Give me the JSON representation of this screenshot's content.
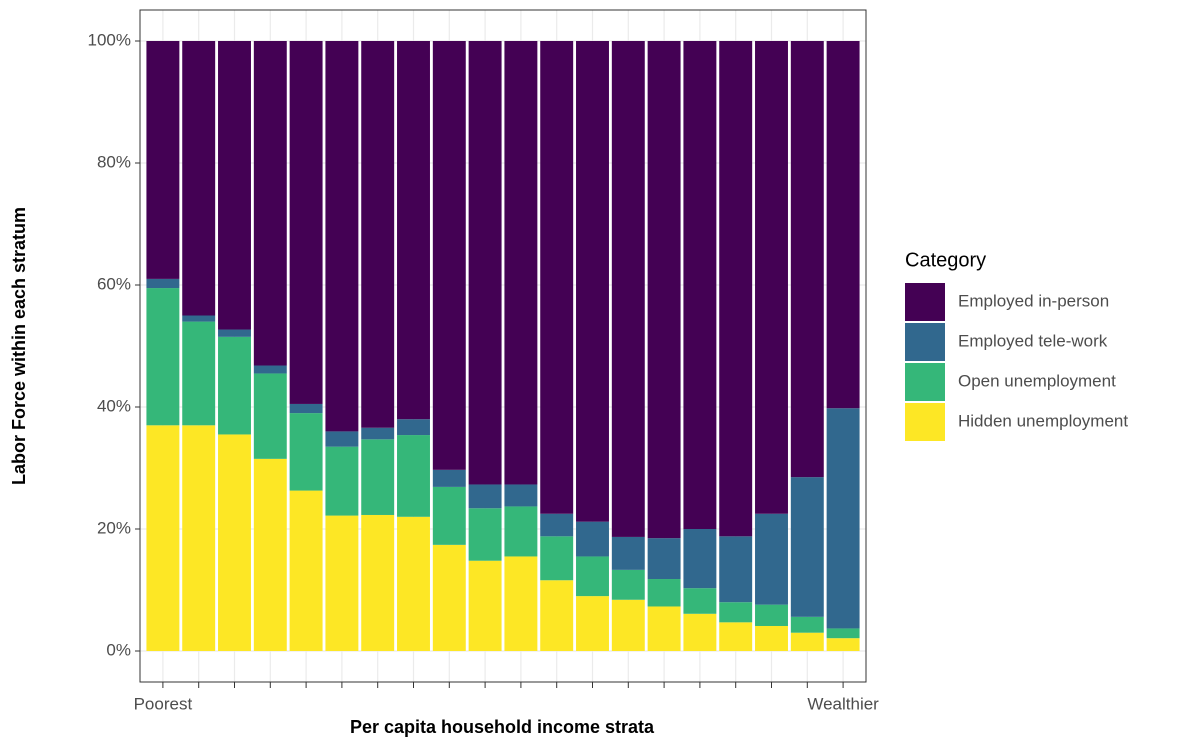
{
  "chart_data": {
    "type": "stacked_bar",
    "x_label": "Per capita household income strata",
    "y_label": "Labor Force within each stratum",
    "legend_title": "Category",
    "legend_position": "right",
    "grid": true,
    "categories": [
      "Poorest",
      null,
      null,
      null,
      null,
      null,
      null,
      null,
      null,
      null,
      null,
      null,
      null,
      null,
      null,
      null,
      null,
      null,
      null,
      "Wealthier"
    ],
    "ylim": [
      0,
      100
    ],
    "yticks": [
      {
        "value": 0,
        "label": "0%"
      },
      {
        "value": 20,
        "label": "20%"
      },
      {
        "value": 40,
        "label": "40%"
      },
      {
        "value": 60,
        "label": "60%"
      },
      {
        "value": 80,
        "label": "80%"
      },
      {
        "value": 100,
        "label": "100%"
      }
    ],
    "series": [
      {
        "name": "Employed in-person",
        "color": "#440154",
        "values": [
          39,
          45,
          47.3,
          53.2,
          59.5,
          64,
          63.4,
          62,
          70.3,
          72.7,
          72.7,
          77.5,
          78.8,
          81.3,
          81.5,
          80,
          81.2,
          77.5,
          71.5,
          60.2
        ]
      },
      {
        "name": "Employed tele-work",
        "color": "#31688e",
        "values": [
          1.5,
          1,
          1.2,
          1.3,
          1.5,
          2.5,
          1.9,
          2.6,
          2.8,
          3.9,
          3.6,
          3.7,
          5.7,
          5.4,
          6.7,
          9.7,
          10.8,
          14.9,
          22.9,
          36.1
        ]
      },
      {
        "name": "Open unemployment",
        "color": "#35b779",
        "values": [
          22.5,
          17,
          16,
          14,
          12.7,
          11.3,
          12.4,
          13.4,
          9.5,
          8.6,
          8.2,
          7.2,
          6.5,
          4.9,
          4.5,
          4.2,
          3.3,
          3.5,
          2.6,
          1.6
        ]
      },
      {
        "name": "Hidden unemployment",
        "color": "#fde725",
        "values": [
          37,
          37,
          35.5,
          31.5,
          26.3,
          22.2,
          22.3,
          22,
          17.4,
          14.8,
          15.5,
          11.6,
          9,
          8.4,
          7.3,
          6.1,
          4.7,
          4.1,
          3,
          2.1
        ]
      }
    ]
  }
}
